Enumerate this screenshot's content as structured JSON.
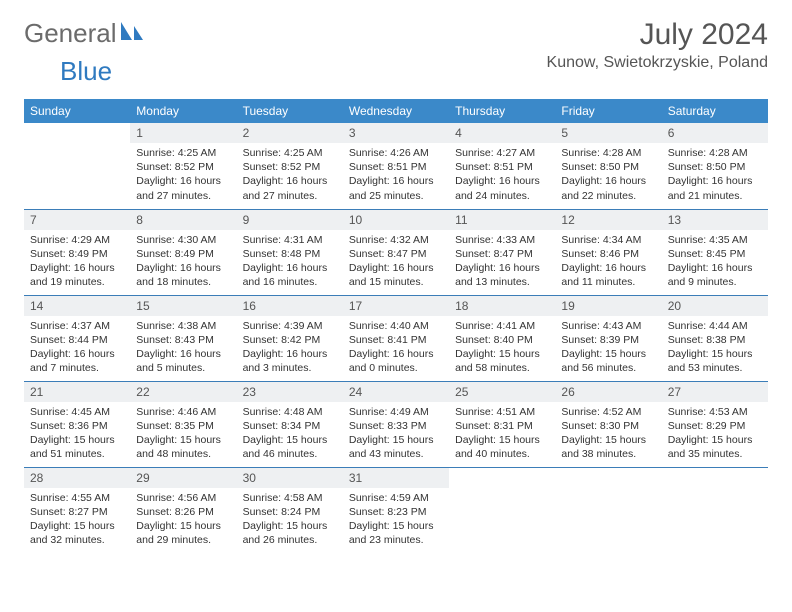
{
  "brand": {
    "part1": "General",
    "part2": "Blue"
  },
  "title": "July 2024",
  "location": "Kunow, Swietokrzyskie, Poland",
  "colors": {
    "header_bg": "#3b89c9",
    "header_text": "#ffffff",
    "daynum_bg": "#eef0f2",
    "border": "#3b7db8",
    "brand_gray": "#6b6b6b",
    "brand_blue": "#2f7ac0"
  },
  "day_headers": [
    "Sunday",
    "Monday",
    "Tuesday",
    "Wednesday",
    "Thursday",
    "Friday",
    "Saturday"
  ],
  "weeks": [
    [
      null,
      {
        "n": "1",
        "sr": "Sunrise: 4:25 AM",
        "ss": "Sunset: 8:52 PM",
        "dl": "Daylight: 16 hours and 27 minutes."
      },
      {
        "n": "2",
        "sr": "Sunrise: 4:25 AM",
        "ss": "Sunset: 8:52 PM",
        "dl": "Daylight: 16 hours and 27 minutes."
      },
      {
        "n": "3",
        "sr": "Sunrise: 4:26 AM",
        "ss": "Sunset: 8:51 PM",
        "dl": "Daylight: 16 hours and 25 minutes."
      },
      {
        "n": "4",
        "sr": "Sunrise: 4:27 AM",
        "ss": "Sunset: 8:51 PM",
        "dl": "Daylight: 16 hours and 24 minutes."
      },
      {
        "n": "5",
        "sr": "Sunrise: 4:28 AM",
        "ss": "Sunset: 8:50 PM",
        "dl": "Daylight: 16 hours and 22 minutes."
      },
      {
        "n": "6",
        "sr": "Sunrise: 4:28 AM",
        "ss": "Sunset: 8:50 PM",
        "dl": "Daylight: 16 hours and 21 minutes."
      }
    ],
    [
      {
        "n": "7",
        "sr": "Sunrise: 4:29 AM",
        "ss": "Sunset: 8:49 PM",
        "dl": "Daylight: 16 hours and 19 minutes."
      },
      {
        "n": "8",
        "sr": "Sunrise: 4:30 AM",
        "ss": "Sunset: 8:49 PM",
        "dl": "Daylight: 16 hours and 18 minutes."
      },
      {
        "n": "9",
        "sr": "Sunrise: 4:31 AM",
        "ss": "Sunset: 8:48 PM",
        "dl": "Daylight: 16 hours and 16 minutes."
      },
      {
        "n": "10",
        "sr": "Sunrise: 4:32 AM",
        "ss": "Sunset: 8:47 PM",
        "dl": "Daylight: 16 hours and 15 minutes."
      },
      {
        "n": "11",
        "sr": "Sunrise: 4:33 AM",
        "ss": "Sunset: 8:47 PM",
        "dl": "Daylight: 16 hours and 13 minutes."
      },
      {
        "n": "12",
        "sr": "Sunrise: 4:34 AM",
        "ss": "Sunset: 8:46 PM",
        "dl": "Daylight: 16 hours and 11 minutes."
      },
      {
        "n": "13",
        "sr": "Sunrise: 4:35 AM",
        "ss": "Sunset: 8:45 PM",
        "dl": "Daylight: 16 hours and 9 minutes."
      }
    ],
    [
      {
        "n": "14",
        "sr": "Sunrise: 4:37 AM",
        "ss": "Sunset: 8:44 PM",
        "dl": "Daylight: 16 hours and 7 minutes."
      },
      {
        "n": "15",
        "sr": "Sunrise: 4:38 AM",
        "ss": "Sunset: 8:43 PM",
        "dl": "Daylight: 16 hours and 5 minutes."
      },
      {
        "n": "16",
        "sr": "Sunrise: 4:39 AM",
        "ss": "Sunset: 8:42 PM",
        "dl": "Daylight: 16 hours and 3 minutes."
      },
      {
        "n": "17",
        "sr": "Sunrise: 4:40 AM",
        "ss": "Sunset: 8:41 PM",
        "dl": "Daylight: 16 hours and 0 minutes."
      },
      {
        "n": "18",
        "sr": "Sunrise: 4:41 AM",
        "ss": "Sunset: 8:40 PM",
        "dl": "Daylight: 15 hours and 58 minutes."
      },
      {
        "n": "19",
        "sr": "Sunrise: 4:43 AM",
        "ss": "Sunset: 8:39 PM",
        "dl": "Daylight: 15 hours and 56 minutes."
      },
      {
        "n": "20",
        "sr": "Sunrise: 4:44 AM",
        "ss": "Sunset: 8:38 PM",
        "dl": "Daylight: 15 hours and 53 minutes."
      }
    ],
    [
      {
        "n": "21",
        "sr": "Sunrise: 4:45 AM",
        "ss": "Sunset: 8:36 PM",
        "dl": "Daylight: 15 hours and 51 minutes."
      },
      {
        "n": "22",
        "sr": "Sunrise: 4:46 AM",
        "ss": "Sunset: 8:35 PM",
        "dl": "Daylight: 15 hours and 48 minutes."
      },
      {
        "n": "23",
        "sr": "Sunrise: 4:48 AM",
        "ss": "Sunset: 8:34 PM",
        "dl": "Daylight: 15 hours and 46 minutes."
      },
      {
        "n": "24",
        "sr": "Sunrise: 4:49 AM",
        "ss": "Sunset: 8:33 PM",
        "dl": "Daylight: 15 hours and 43 minutes."
      },
      {
        "n": "25",
        "sr": "Sunrise: 4:51 AM",
        "ss": "Sunset: 8:31 PM",
        "dl": "Daylight: 15 hours and 40 minutes."
      },
      {
        "n": "26",
        "sr": "Sunrise: 4:52 AM",
        "ss": "Sunset: 8:30 PM",
        "dl": "Daylight: 15 hours and 38 minutes."
      },
      {
        "n": "27",
        "sr": "Sunrise: 4:53 AM",
        "ss": "Sunset: 8:29 PM",
        "dl": "Daylight: 15 hours and 35 minutes."
      }
    ],
    [
      {
        "n": "28",
        "sr": "Sunrise: 4:55 AM",
        "ss": "Sunset: 8:27 PM",
        "dl": "Daylight: 15 hours and 32 minutes."
      },
      {
        "n": "29",
        "sr": "Sunrise: 4:56 AM",
        "ss": "Sunset: 8:26 PM",
        "dl": "Daylight: 15 hours and 29 minutes."
      },
      {
        "n": "30",
        "sr": "Sunrise: 4:58 AM",
        "ss": "Sunset: 8:24 PM",
        "dl": "Daylight: 15 hours and 26 minutes."
      },
      {
        "n": "31",
        "sr": "Sunrise: 4:59 AM",
        "ss": "Sunset: 8:23 PM",
        "dl": "Daylight: 15 hours and 23 minutes."
      },
      null,
      null,
      null
    ]
  ]
}
